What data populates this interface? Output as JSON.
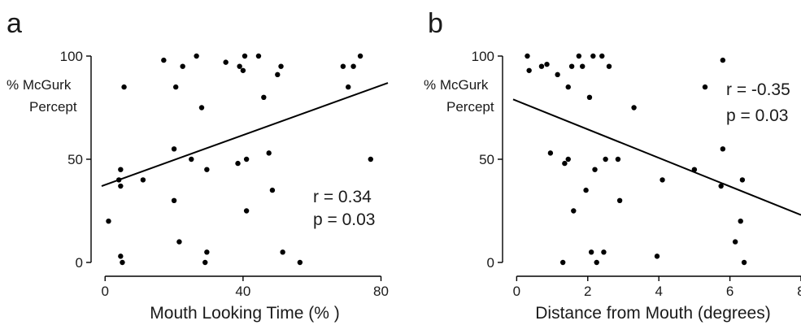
{
  "chart_data": [
    {
      "type": "scatter",
      "panel_label": "a",
      "xlabel": "Mouth Looking Time (% )",
      "ylabel_lines": [
        "% McGurk",
        "Percept"
      ],
      "xlim": [
        -1,
        82
      ],
      "ylim": [
        0,
        100
      ],
      "x_ticks": [
        0,
        40,
        80
      ],
      "y_ticks": [
        0,
        50,
        100
      ],
      "x_tick_labels": [
        "0",
        "40",
        "80"
      ],
      "y_tick_labels": [
        "0",
        "50",
        "100"
      ],
      "annotations": [
        "r = 0.34",
        "p = 0.03"
      ],
      "fit_line": {
        "x": [
          -1,
          82
        ],
        "y": [
          37,
          87
        ]
      },
      "points": [
        {
          "x": 1,
          "y": 20
        },
        {
          "x": 4,
          "y": 40
        },
        {
          "x": 4.5,
          "y": 3
        },
        {
          "x": 4.5,
          "y": 37
        },
        {
          "x": 4.5,
          "y": 45
        },
        {
          "x": 5,
          "y": 0
        },
        {
          "x": 5.5,
          "y": 85
        },
        {
          "x": 11,
          "y": 40
        },
        {
          "x": 17,
          "y": 98
        },
        {
          "x": 20,
          "y": 55
        },
        {
          "x": 20,
          "y": 30
        },
        {
          "x": 20.5,
          "y": 85
        },
        {
          "x": 21.5,
          "y": 10
        },
        {
          "x": 22.5,
          "y": 95
        },
        {
          "x": 25,
          "y": 50
        },
        {
          "x": 26.5,
          "y": 100
        },
        {
          "x": 28,
          "y": 75
        },
        {
          "x": 29,
          "y": 0
        },
        {
          "x": 29.5,
          "y": 5
        },
        {
          "x": 29.5,
          "y": 45
        },
        {
          "x": 35,
          "y": 97
        },
        {
          "x": 38.5,
          "y": 48
        },
        {
          "x": 39,
          "y": 95
        },
        {
          "x": 40,
          "y": 93
        },
        {
          "x": 40.5,
          "y": 100
        },
        {
          "x": 41,
          "y": 25
        },
        {
          "x": 41,
          "y": 50
        },
        {
          "x": 44.5,
          "y": 100
        },
        {
          "x": 46,
          "y": 80
        },
        {
          "x": 47.5,
          "y": 53
        },
        {
          "x": 48.5,
          "y": 35
        },
        {
          "x": 50,
          "y": 91
        },
        {
          "x": 51,
          "y": 95
        },
        {
          "x": 51.5,
          "y": 5
        },
        {
          "x": 56.5,
          "y": 0
        },
        {
          "x": 69,
          "y": 95
        },
        {
          "x": 70.5,
          "y": 85
        },
        {
          "x": 72,
          "y": 95
        },
        {
          "x": 74,
          "y": 100
        },
        {
          "x": 77,
          "y": 50
        }
      ]
    },
    {
      "type": "scatter",
      "panel_label": "b",
      "xlabel": "Distance from Mouth (degrees)",
      "ylabel_lines": [
        "% McGurk",
        "Percept"
      ],
      "xlim": [
        -0.1,
        8
      ],
      "ylim": [
        0,
        100
      ],
      "x_ticks": [
        0,
        2,
        4,
        6,
        8
      ],
      "y_ticks": [
        0,
        50,
        100
      ],
      "x_tick_labels": [
        "0",
        "2",
        "4",
        "6",
        "8"
      ],
      "y_tick_labels": [
        "0",
        "50",
        "100"
      ],
      "annotations": [
        "r = -0.35",
        "p = 0.03"
      ],
      "fit_line": {
        "x": [
          -0.1,
          8
        ],
        "y": [
          79,
          23
        ]
      },
      "points": [
        {
          "x": 0.3,
          "y": 100
        },
        {
          "x": 0.35,
          "y": 93
        },
        {
          "x": 0.7,
          "y": 95
        },
        {
          "x": 0.85,
          "y": 96
        },
        {
          "x": 0.95,
          "y": 53
        },
        {
          "x": 1.15,
          "y": 91
        },
        {
          "x": 1.3,
          "y": 0
        },
        {
          "x": 1.35,
          "y": 48
        },
        {
          "x": 1.45,
          "y": 85
        },
        {
          "x": 1.45,
          "y": 50
        },
        {
          "x": 1.55,
          "y": 95
        },
        {
          "x": 1.6,
          "y": 25
        },
        {
          "x": 1.75,
          "y": 100
        },
        {
          "x": 1.85,
          "y": 95
        },
        {
          "x": 1.95,
          "y": 35
        },
        {
          "x": 2.05,
          "y": 80
        },
        {
          "x": 2.1,
          "y": 5
        },
        {
          "x": 2.15,
          "y": 100
        },
        {
          "x": 2.2,
          "y": 45
        },
        {
          "x": 2.25,
          "y": 0
        },
        {
          "x": 2.4,
          "y": 100
        },
        {
          "x": 2.45,
          "y": 5
        },
        {
          "x": 2.5,
          "y": 50
        },
        {
          "x": 2.6,
          "y": 95
        },
        {
          "x": 2.85,
          "y": 50
        },
        {
          "x": 2.9,
          "y": 30
        },
        {
          "x": 3.3,
          "y": 75
        },
        {
          "x": 3.95,
          "y": 3
        },
        {
          "x": 4.1,
          "y": 40
        },
        {
          "x": 5.0,
          "y": 45
        },
        {
          "x": 5.3,
          "y": 85
        },
        {
          "x": 5.75,
          "y": 37
        },
        {
          "x": 5.8,
          "y": 98
        },
        {
          "x": 5.8,
          "y": 55
        },
        {
          "x": 6.15,
          "y": 10
        },
        {
          "x": 6.3,
          "y": 20
        },
        {
          "x": 6.35,
          "y": 40
        },
        {
          "x": 6.4,
          "y": 0
        }
      ]
    }
  ]
}
